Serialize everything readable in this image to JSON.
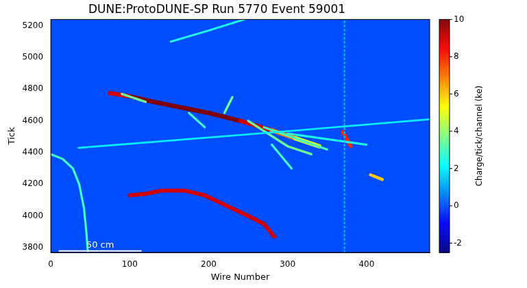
{
  "chart_data": {
    "type": "heatmap",
    "title": "DUNE:ProtoDUNE-SP Run 5770 Event 59001",
    "x_label": "Wire Number",
    "y_label": "Tick",
    "xlim": [
      0,
      480
    ],
    "xticks": [
      0,
      100,
      200,
      300,
      400
    ],
    "ylim": [
      3770,
      5240
    ],
    "yticks": [
      3800,
      4000,
      4200,
      4400,
      4600,
      4800,
      5000,
      5200
    ],
    "grid": false,
    "background": 0,
    "colorbar": {
      "label": "Charge/tick/channel (ke)",
      "range": [
        -2.5,
        10
      ],
      "ticks": [
        -2,
        0,
        2,
        4,
        6,
        8,
        10
      ]
    },
    "scale_bar": {
      "label": "50 cm",
      "x": [
        10,
        115
      ],
      "y": 3780
    },
    "tracks": [
      {
        "x": [
          372,
          372
        ],
        "y": [
          3770,
          5240
        ],
        "charge": [
          1.5,
          1.5
        ],
        "line_style": "dotted"
      },
      {
        "x": [
          35,
          150,
          300,
          480
        ],
        "y": [
          4430,
          4475,
          4535,
          4610
        ],
        "charge": [
          2,
          2,
          2,
          2
        ]
      },
      {
        "x": [
          152,
          200,
          245
        ],
        "y": [
          5100,
          5170,
          5240
        ],
        "charge": [
          2.5,
          2.5,
          2.5
        ]
      },
      {
        "x": [
          0,
          15,
          28,
          36,
          42,
          45,
          47
        ],
        "y": [
          4390,
          4360,
          4300,
          4200,
          4050,
          3900,
          3770
        ],
        "charge": [
          3,
          3,
          3,
          3,
          3,
          3,
          3
        ]
      },
      {
        "x": [
          100,
          120,
          140,
          170,
          195,
          220,
          250,
          270,
          283
        ],
        "y": [
          4130,
          4140,
          4160,
          4160,
          4130,
          4070,
          4000,
          3950,
          3870
        ],
        "charge": [
          9,
          9,
          9,
          9,
          9,
          9,
          9,
          9,
          9
        ]
      },
      {
        "x": [
          175,
          195
        ],
        "y": [
          4650,
          4560
        ],
        "charge": [
          3,
          3
        ]
      },
      {
        "x": [
          250,
          300,
          330
        ],
        "y": [
          4600,
          4440,
          4390
        ],
        "charge": [
          3.5,
          3.5,
          3.5
        ]
      },
      {
        "x": [
          270,
          350
        ],
        "y": [
          4560,
          4420
        ],
        "charge": [
          3,
          3
        ]
      },
      {
        "x": [
          300,
          400
        ],
        "y": [
          4520,
          4450
        ],
        "charge": [
          2.5,
          2.5
        ]
      },
      {
        "x": [
          220,
          230
        ],
        "y": [
          4650,
          4750
        ],
        "charge": [
          3.5,
          3.5
        ]
      },
      {
        "x": [
          90,
          120
        ],
        "y": [
          4770,
          4720
        ],
        "charge": [
          3.5,
          3.5
        ]
      },
      {
        "x": [
          280,
          305
        ],
        "y": [
          4450,
          4300
        ],
        "charge": [
          3,
          3
        ]
      },
      {
        "x": [
          370,
          380
        ],
        "y": [
          4530,
          4440
        ],
        "charge": [
          8,
          8
        ]
      },
      {
        "x": [
          405,
          420
        ],
        "y": [
          4260,
          4230
        ],
        "charge": [
          6,
          6
        ]
      },
      {
        "x": [
          75,
          100,
          130,
          160,
          200,
          240,
          280,
          310,
          340
        ],
        "y": [
          4775,
          4755,
          4720,
          4690,
          4650,
          4600,
          4540,
          4490,
          4440
        ],
        "charge": [
          9,
          10,
          10,
          10,
          10,
          9,
          7,
          5,
          4
        ]
      }
    ]
  }
}
